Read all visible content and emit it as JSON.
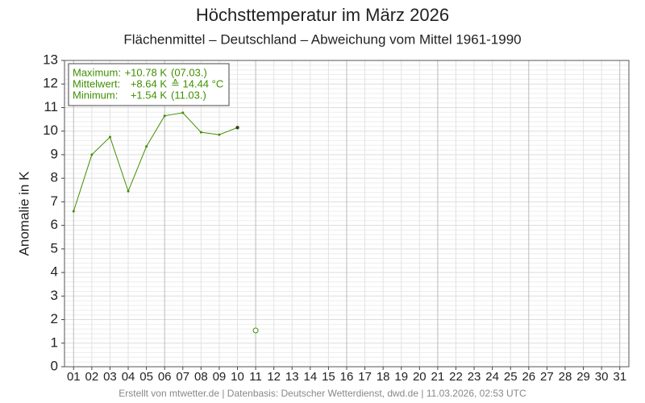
{
  "chart_data": {
    "type": "line",
    "title": "Höchsttemperatur im März 2026",
    "subtitle": "Flächenmittel – Deutschland – Abweichung vom Mittel 1961-1990",
    "y_label": "Anomalie in K",
    "footer": "Erstellt von mtwetter.de | Datenbasis: Deutscher Wetterdienst, dwd.de | 11.03.2026, 02:53 UTC",
    "info_box": [
      [
        "Maximum:",
        "+10.78 K",
        "(07.03.)"
      ],
      [
        "Mittelwert:",
        "+8.64 K",
        "≙ 14.44 °C"
      ],
      [
        "Minimum:",
        "+1.54 K",
        "(11.03.)"
      ]
    ],
    "categories": [
      "01",
      "02",
      "03",
      "04",
      "05",
      "06",
      "07",
      "08",
      "09",
      "10",
      "11",
      "12",
      "13",
      "14",
      "15",
      "16",
      "17",
      "18",
      "19",
      "20",
      "21",
      "22",
      "23",
      "24",
      "25",
      "26",
      "27",
      "28",
      "29",
      "30",
      "31"
    ],
    "series": [
      {
        "color": "#3f8f00",
        "marker": "dot",
        "values": [
          6.6,
          9.0,
          9.75,
          7.45,
          9.35,
          10.65,
          10.78,
          9.95,
          9.85,
          10.15,
          null,
          null,
          null,
          null,
          null,
          null,
          null,
          null,
          null,
          null,
          null,
          null,
          null,
          null,
          null,
          null,
          null,
          null,
          null,
          null,
          null
        ]
      },
      {
        "color": "#3f8f00",
        "marker": "open",
        "values": [
          null,
          null,
          null,
          null,
          null,
          null,
          null,
          null,
          null,
          null,
          1.54,
          null,
          null,
          null,
          null,
          null,
          null,
          null,
          null,
          null,
          null,
          null,
          null,
          null,
          null,
          null,
          null,
          null,
          null,
          null,
          null
        ]
      }
    ],
    "ylim": [
      0,
      13
    ],
    "yticks": [
      0,
      1,
      2,
      3,
      4,
      5,
      6,
      7,
      8,
      9,
      10,
      11,
      12,
      13
    ],
    "grid": true
  }
}
